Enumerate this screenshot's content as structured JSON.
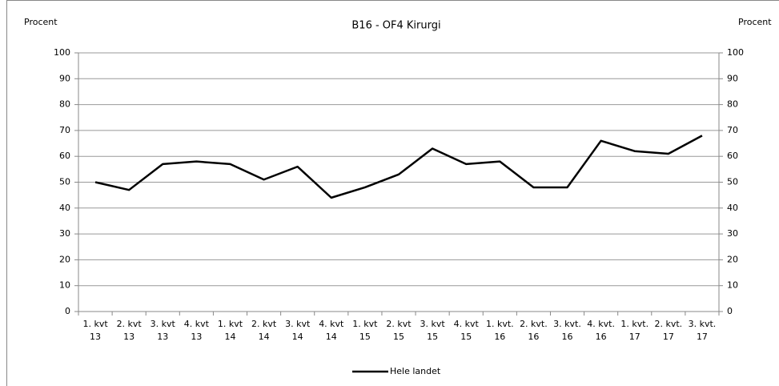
{
  "chart_data": {
    "type": "line",
    "title": "B16 - OF4 Kirurgi",
    "y_label": "Procent",
    "y2_label": "Procent",
    "categories": [
      "1. kvt 13",
      "2. kvt 13",
      "3. kvt 13",
      "4. kvt 13",
      "1. kvt 14",
      "2. kvt 14",
      "3. kvt 14",
      "4. kvt 14",
      "1. kvt 15",
      "2. kvt 15",
      "3. kvt 15",
      "4. kvt 15",
      "1. kvt. 16",
      "2. kvt. 16",
      "3. kvt. 16",
      "4. kvt. 16",
      "1. kvt. 17",
      "2. kvt. 17",
      "3. kvt. 17"
    ],
    "series": [
      {
        "name": "Hele landet",
        "color": "#000000",
        "values": [
          50,
          47,
          57,
          58,
          57,
          51,
          56,
          44,
          48,
          53,
          63,
          57,
          58,
          48,
          48,
          66,
          62,
          61,
          68
        ]
      }
    ],
    "ylim": [
      0,
      100
    ],
    "yticks": [
      0,
      10,
      20,
      30,
      40,
      50,
      60,
      70,
      80,
      90,
      100
    ],
    "y2lim": [
      0,
      100
    ],
    "y2ticks": [
      0,
      10,
      20,
      30,
      40,
      50,
      60,
      70,
      80,
      90,
      100
    ],
    "grid": true,
    "legend": "bottom"
  }
}
